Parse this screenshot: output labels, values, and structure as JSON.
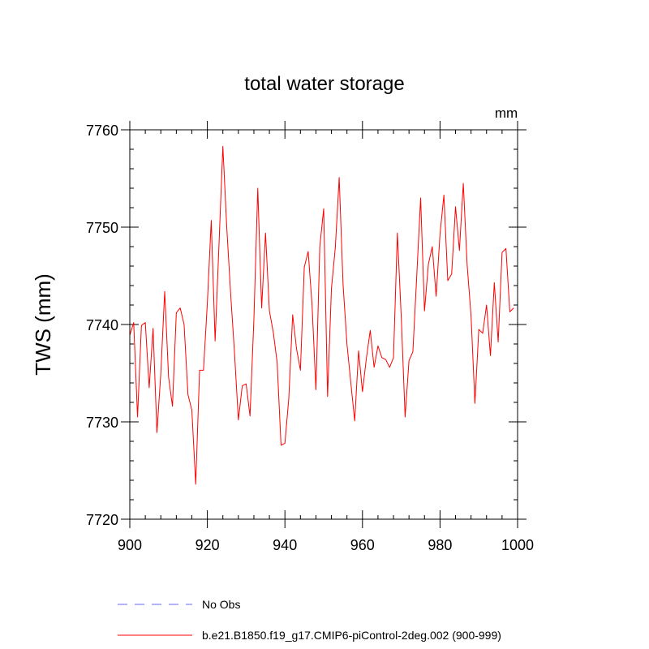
{
  "chart_data": {
    "type": "line",
    "title": "total water storage",
    "xlabel": "",
    "ylabel": "TWS  (mm)",
    "units_label": "mm",
    "xlim": [
      900,
      1000
    ],
    "ylim": [
      7720,
      7760
    ],
    "x_ticks": [
      900,
      920,
      940,
      960,
      980,
      1000
    ],
    "y_ticks": [
      7720,
      7730,
      7740,
      7750,
      7760
    ],
    "x_tick_labels": [
      "900",
      "920",
      "940",
      "960",
      "980",
      "1000"
    ],
    "y_tick_labels": [
      "7720",
      "7730",
      "7740",
      "7750",
      "7760"
    ],
    "x_minor_step": 4,
    "y_minor_step": 2,
    "series": [
      {
        "name": "b.e21.B1850.f19_g17.CMIP6-piControl-2deg.002 (900-999)",
        "color": "#ff0000",
        "style": "solid",
        "x_start": 900,
        "x_step": 1,
        "values": [
          7738.9,
          7740.2,
          7730.5,
          7739.9,
          7740.2,
          7733.5,
          7739.6,
          7728.9,
          7735.0,
          7743.4,
          7734.6,
          7731.6,
          7741.2,
          7741.7,
          7740.0,
          7732.8,
          7731.2,
          7723.6,
          7735.3,
          7735.3,
          7742.2,
          7750.7,
          7738.3,
          7748.2,
          7758.3,
          7750.0,
          7743.2,
          7737.1,
          7730.2,
          7733.7,
          7733.9,
          7730.6,
          7740.5,
          7754.0,
          7741.7,
          7749.4,
          7741.4,
          7739.2,
          7736.1,
          7727.6,
          7727.8,
          7732.4,
          7741.0,
          7737.5,
          7735.3,
          7745.9,
          7747.5,
          7742.0,
          7733.3,
          7748.0,
          7751.9,
          7732.6,
          7743.7,
          7747.9,
          7755.1,
          7744.1,
          7738.0,
          7734.0,
          7730.1,
          7737.3,
          7733.1,
          7736.5,
          7739.4,
          7735.6,
          7737.8,
          7736.6,
          7736.4,
          7735.6,
          7736.6,
          7749.4,
          7740.8,
          7730.5,
          7736.3,
          7737.2,
          7745.0,
          7753.0,
          7741.4,
          7746.2,
          7748.0,
          7742.9,
          7749.3,
          7753.3,
          7744.5,
          7745.2,
          7752.1,
          7747.6,
          7754.5,
          7746.1,
          7740.9,
          7731.9,
          7739.5,
          7739.1,
          7742.0,
          7736.8,
          7744.3,
          7738.2,
          7747.4,
          7747.8,
          7741.3,
          7741.7
        ]
      }
    ],
    "legend": [
      {
        "label": "No Obs",
        "color": "#6666ff",
        "style": "dashed"
      },
      {
        "label": "b.e21.B1850.f19_g17.CMIP6-piControl-2deg.002 (900-999)",
        "color": "#ff0000",
        "style": "solid"
      }
    ],
    "legend_placement": "bottom-left"
  }
}
